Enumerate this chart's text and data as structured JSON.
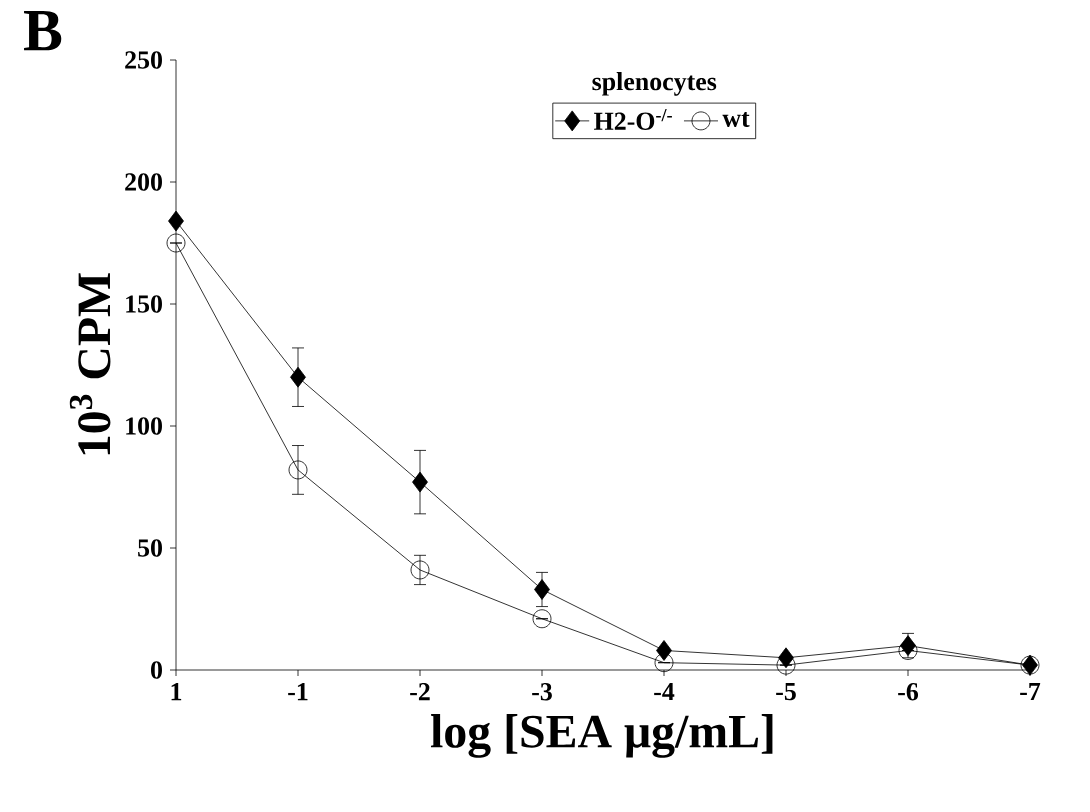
{
  "chart_data": {
    "type": "line",
    "title": "B",
    "xlabel": "log [SEA μg/mL]",
    "ylabel": "10$^{3}$ CPM",
    "legend_title": "splenocytes",
    "categories": [
      "1",
      "-1",
      "-2",
      "-3",
      "-4",
      "-5",
      "-6",
      "-7"
    ],
    "series": [
      {
        "name": "H2-O$^{-/-}$",
        "color": "#000000",
        "marker": "diamond",
        "values": [
          184,
          120,
          77,
          33,
          8,
          5,
          10,
          2
        ],
        "errors": [
          null,
          12,
          13,
          7,
          null,
          null,
          5,
          null
        ]
      },
      {
        "name": "wt",
        "color": "#000000",
        "marker": "circle",
        "values": [
          175,
          82,
          41,
          21,
          3,
          2,
          8,
          2
        ],
        "errors": [
          null,
          10,
          6,
          null,
          null,
          null,
          null,
          null
        ]
      }
    ],
    "ylim": [
      0,
      250
    ],
    "yticks": [
      0,
      50,
      100,
      150,
      200,
      250
    ],
    "legend": "top",
    "line_style": "solid"
  }
}
